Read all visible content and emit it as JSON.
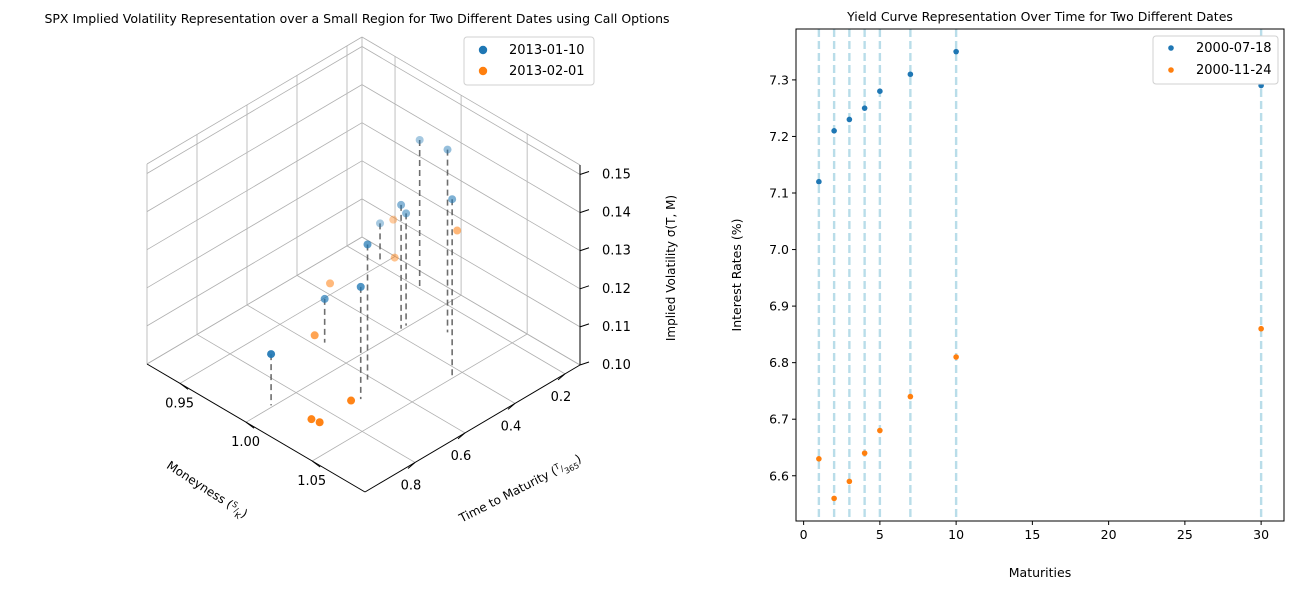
{
  "chart_data": [
    {
      "type": "scatter3d",
      "title": "SPX Implied Volatility Representation over a Small Region for Two Different Dates using Call Options",
      "xlabel": "Moneyness",
      "xlabel_frac_num": "S",
      "xlabel_frac_den": "K",
      "ylabel": "Time to Maturity",
      "ylabel_frac_num": "T",
      "ylabel_frac_den": "365",
      "zlabel": "Implied Volatility σ(T, M)",
      "x_ticks": [
        "1.05",
        "1.00",
        "0.95"
      ],
      "y_ticks": [
        "0.2",
        "0.4",
        "0.6",
        "0.8"
      ],
      "z_ticks": [
        "0.10",
        "0.11",
        "0.12",
        "0.13",
        "0.14",
        "0.15"
      ],
      "legend_position": "top-right",
      "series": [
        {
          "name": "2013-01-10",
          "color": "#1f77b4",
          "points": [
            {
              "moneyness": 1.02,
              "ttm": 0.3,
              "iv": 0.1485
            },
            {
              "moneyness": 1.05,
              "ttm": 0.44,
              "iv": 0.147
            },
            {
              "moneyness": 0.98,
              "ttm": 0.2,
              "iv": 0.139
            },
            {
              "moneyness": 1.0,
              "ttm": 0.38,
              "iv": 0.133
            },
            {
              "moneyness": 1.0,
              "ttm": 0.36,
              "iv": 0.13
            },
            {
              "moneyness": 1.02,
              "ttm": 0.62,
              "iv": 0.136
            },
            {
              "moneyness": 1.03,
              "ttm": 0.7,
              "iv": 0.13
            },
            {
              "moneyness": 0.95,
              "ttm": 0.2,
              "iv": 0.111
            },
            {
              "moneyness": 0.98,
              "ttm": 0.58,
              "iv": 0.112
            },
            {
              "moneyness": 1.0,
              "ttm": 0.9,
              "iv": 0.114
            }
          ]
        },
        {
          "name": "2013-02-01",
          "color": "#ff7f0e",
          "points": [
            {
              "moneyness": 1.05,
              "ttm": 0.42,
              "iv": 0.138
            },
            {
              "moneyness": 0.96,
              "ttm": 0.2,
              "iv": 0.114
            },
            {
              "moneyness": 0.98,
              "ttm": 0.3,
              "iv": 0.112
            },
            {
              "moneyness": 1.07,
              "ttm": 0.95,
              "iv": 0.118
            },
            {
              "moneyness": 1.05,
              "ttm": 0.97,
              "iv": 0.109
            },
            {
              "moneyness": 1.04,
              "ttm": 0.95,
              "iv": 0.107
            },
            {
              "moneyness": 0.98,
              "ttm": 0.62,
              "iv": 0.104
            },
            {
              "moneyness": 0.95,
              "ttm": 0.4,
              "iv": 0.103
            }
          ]
        }
      ]
    },
    {
      "type": "scatter",
      "title": "Yield Curve Representation Over Time for Two Different Dates",
      "xlabel": "Maturities",
      "ylabel": "Interest Rates (%)",
      "xlim": [
        -0.5,
        31.5
      ],
      "ylim": [
        6.52,
        7.39
      ],
      "x_ticks": [
        0,
        5,
        10,
        15,
        20,
        25,
        30
      ],
      "y_ticks": [
        "6.6",
        "6.7",
        "6.8",
        "6.9",
        "7.0",
        "7.1",
        "7.2",
        "7.3"
      ],
      "vlines": [
        1,
        2,
        3,
        4,
        5,
        7,
        10,
        30
      ],
      "vline_color": "#add8e6",
      "legend_position": "top-right",
      "series": [
        {
          "name": "2000-07-18",
          "color": "#1f77b4",
          "x": [
            1,
            2,
            3,
            4,
            5,
            7,
            10,
            30
          ],
          "y": [
            7.12,
            7.21,
            7.23,
            7.25,
            7.28,
            7.31,
            7.35,
            7.29
          ]
        },
        {
          "name": "2000-11-24",
          "color": "#ff7f0e",
          "x": [
            1,
            2,
            3,
            4,
            5,
            7,
            10,
            30
          ],
          "y": [
            6.63,
            6.56,
            6.59,
            6.64,
            6.68,
            6.74,
            6.81,
            6.86
          ]
        }
      ]
    }
  ]
}
